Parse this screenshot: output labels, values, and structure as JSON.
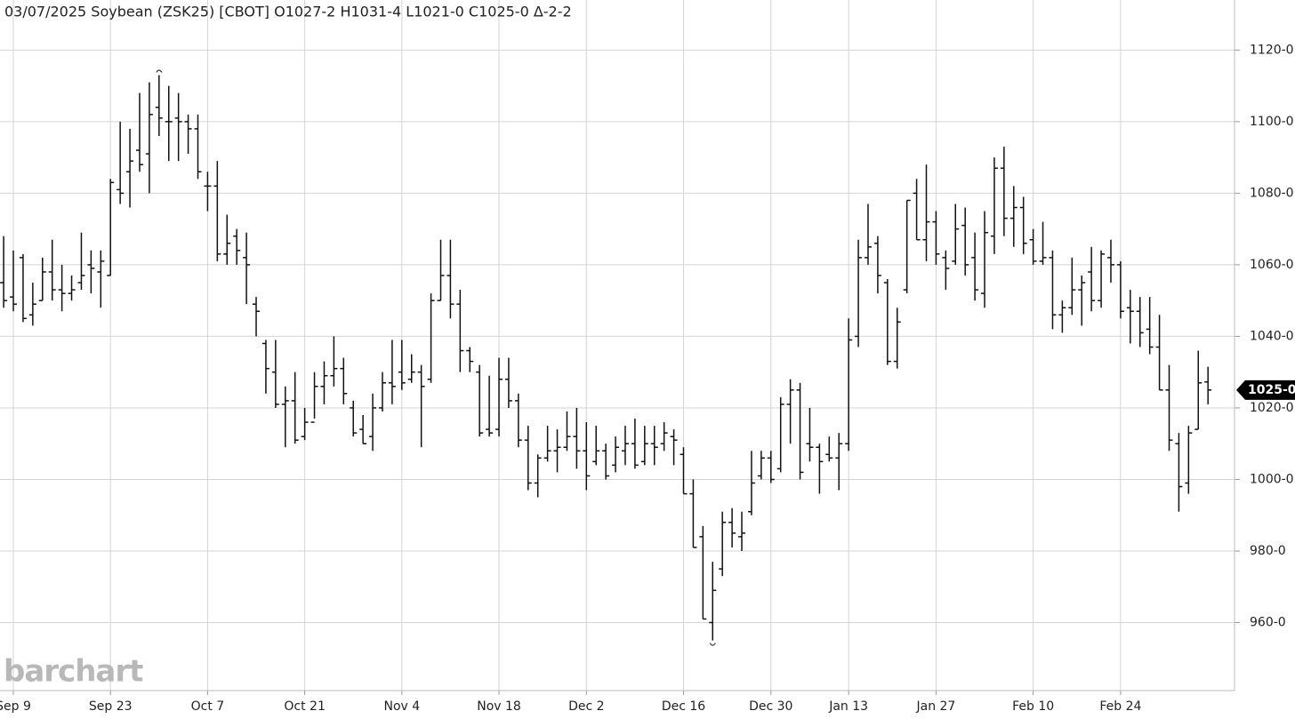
{
  "chart_data": {
    "type": "ohlc",
    "title": "03/07/2025 Soybean (ZSK25) [CBOT] O1027-2 H1031-4 L1021-0 C1025-0 Δ-2-2",
    "watermark": "barchart",
    "color": "#111111",
    "grid": true,
    "categories": [
      null,
      "Sep 9",
      null,
      null,
      null,
      null,
      null,
      null,
      null,
      null,
      null,
      "Sep 23",
      null,
      null,
      null,
      null,
      null,
      null,
      null,
      null,
      null,
      "Oct 7",
      null,
      null,
      null,
      null,
      null,
      null,
      null,
      null,
      null,
      "Oct 21",
      null,
      null,
      null,
      null,
      null,
      null,
      null,
      null,
      null,
      "Nov 4",
      null,
      null,
      null,
      null,
      null,
      null,
      null,
      null,
      null,
      "Nov 18",
      null,
      null,
      null,
      null,
      null,
      null,
      null,
      null,
      "Dec 2",
      null,
      null,
      null,
      null,
      null,
      null,
      null,
      null,
      null,
      "Dec 16",
      null,
      null,
      null,
      null,
      null,
      null,
      null,
      null,
      "Dec 30",
      null,
      null,
      null,
      null,
      null,
      null,
      null,
      "Jan 13",
      null,
      null,
      null,
      null,
      null,
      null,
      null,
      null,
      "Jan 27",
      null,
      null,
      null,
      null,
      null,
      null,
      null,
      null,
      null,
      "Feb 10",
      null,
      null,
      null,
      null,
      null,
      null,
      null,
      null,
      "Feb 24",
      null,
      null,
      null,
      null,
      null,
      null,
      null,
      null,
      null
    ],
    "open": [
      1055,
      1051,
      1062,
      1046,
      1050,
      1058,
      1053,
      1052,
      1055,
      1060,
      1058,
      1057,
      1081,
      1086,
      1092,
      1091,
      1104,
      1100,
      1101,
      1100,
      1098,
      1082,
      1082,
      1063,
      1068,
      1062,
      1049,
      1038,
      1030,
      1021,
      1022,
      1012,
      1016,
      1026,
      1029,
      1031,
      1020,
      1014,
      1012,
      1020,
      1027,
      1030,
      1028,
      1030,
      1028,
      1050,
      1057,
      1049,
      1036,
      1030,
      1014,
      1014,
      1028,
      1022,
      1011,
      999,
      1006,
      1008,
      1009,
      1012,
      1008,
      1005,
      1008,
      1004,
      1008,
      1010,
      1005,
      1010,
      1010,
      1012,
      1007,
      996,
      984,
      960,
      975,
      988,
      984,
      991,
      1001,
      1006,
      1003,
      1021,
      1025,
      1010,
      1009,
      1007,
      1006,
      1010,
      1040,
      1062,
      1066,
      1055,
      1033,
      1053,
      1080,
      1067,
      1072,
      1062,
      1061,
      1071,
      1062,
      1052,
      1068,
      1087,
      1073,
      1076,
      1067,
      1061,
      1062,
      1046,
      1048,
      1053,
      1058,
      1050,
      1062,
      1060,
      1048,
      1047,
      1042,
      1037,
      1025,
      1010,
      999,
      1014,
      1027.25
    ],
    "high": [
      1068,
      1064,
      1063,
      1055,
      1062,
      1067,
      1060,
      1057,
      1069,
      1064,
      1064,
      1084,
      1100,
      1098,
      1108,
      1111,
      1113,
      1110,
      1108,
      1102,
      1102,
      1086,
      1089,
      1074,
      1070,
      1069,
      1051,
      1039,
      1039,
      1026,
      1030,
      1020,
      1030,
      1033,
      1040,
      1034,
      1022,
      1018,
      1024,
      1030,
      1039,
      1039,
      1035,
      1032,
      1052,
      1067,
      1067,
      1053,
      1037,
      1032,
      1029,
      1034,
      1034,
      1024,
      1015,
      1007,
      1015,
      1014,
      1019,
      1020,
      1016,
      1015,
      1010,
      1012,
      1015,
      1017,
      1015,
      1015,
      1016,
      1014,
      1009,
      1000,
      987,
      977,
      991,
      992,
      991,
      1008,
      1008,
      1008,
      1023,
      1028,
      1027,
      1020,
      1010,
      1012,
      1013,
      1045,
      1067,
      1077,
      1068,
      1056,
      1048,
      1078,
      1084,
      1088,
      1075,
      1064,
      1077,
      1076,
      1069,
      1075,
      1090,
      1093,
      1082,
      1079,
      1070,
      1072,
      1064,
      1050,
      1062,
      1057,
      1065,
      1064,
      1067,
      1061,
      1053,
      1051,
      1051,
      1046,
      1032,
      1013,
      1015,
      1036,
      1031.5
    ],
    "low": [
      1048,
      1047,
      1044,
      1043,
      1050,
      1050,
      1047,
      1050,
      1053,
      1052,
      1048,
      1057,
      1077,
      1076,
      1086,
      1080,
      1096,
      1089,
      1089,
      1091,
      1084,
      1075,
      1061,
      1060,
      1060,
      1049,
      1040,
      1024,
      1020,
      1009,
      1010,
      1011,
      1017,
      1021,
      1026,
      1021,
      1012,
      1010,
      1008,
      1019,
      1021,
      1025,
      1027,
      1009,
      1027,
      1050,
      1045,
      1030,
      1030,
      1012,
      1012,
      1012,
      1020,
      1009,
      997,
      995,
      1005,
      1002,
      1008,
      1003,
      997,
      1004,
      1000,
      1002,
      1004,
      1003,
      1004,
      1004,
      1008,
      1004,
      996,
      981,
      961,
      955,
      973,
      981,
      980,
      990,
      1000,
      999,
      1002,
      1010,
      1000,
      1005,
      996,
      1005,
      997,
      1008,
      1037,
      1060,
      1052,
      1032,
      1031,
      1052,
      1067,
      1061,
      1060,
      1053,
      1060,
      1057,
      1050,
      1048,
      1063,
      1068,
      1065,
      1063,
      1060,
      1060,
      1042,
      1041,
      1046,
      1043,
      1047,
      1048,
      1055,
      1045,
      1038,
      1037,
      1035,
      1025,
      1008,
      991,
      996,
      1014,
      1021
    ],
    "close": [
      1050,
      1049,
      1045,
      1049,
      1058,
      1053,
      1052,
      1053,
      1057,
      1059,
      1061,
      1083,
      1080,
      1089,
      1088,
      1102,
      1101,
      1100,
      1100,
      1098,
      1086,
      1082,
      1063,
      1066,
      1064,
      1060,
      1047,
      1031,
      1021,
      1022,
      1011,
      1016,
      1026,
      1029,
      1031,
      1024,
      1013,
      1010,
      1020,
      1027,
      1026,
      1027,
      1030,
      1026,
      1050,
      1057,
      1049,
      1036,
      1033,
      1013,
      1013,
      1028,
      1022,
      1011,
      999,
      1006,
      1008,
      1009,
      1012,
      1008,
      1001,
      1008,
      1001,
      1009,
      1010,
      1004,
      1010,
      1009,
      1013,
      1011,
      996,
      981,
      961,
      969,
      988,
      985,
      985,
      999,
      1006,
      1000,
      1021,
      1025,
      1002,
      1009,
      1005,
      1006,
      1010,
      1039,
      1062,
      1065,
      1057,
      1033,
      1044,
      1078,
      1067,
      1072,
      1063,
      1059,
      1070,
      1060,
      1053,
      1069,
      1087,
      1073,
      1076,
      1066,
      1061,
      1062,
      1046,
      1048,
      1053,
      1055,
      1050,
      1063,
      1060,
      1047,
      1047,
      1041,
      1037,
      1025,
      1011,
      998,
      1013,
      1027,
      1025
    ],
    "last_price": {
      "value": 1025,
      "label": "1025-0"
    },
    "ylim": [
      941,
      1134
    ],
    "yticks": [
      {
        "value": 960,
        "label": "960-0"
      },
      {
        "value": 980,
        "label": "980-0"
      },
      {
        "value": 1000,
        "label": "1000-0"
      },
      {
        "value": 1020,
        "label": "1020-0"
      },
      {
        "value": 1040,
        "label": "1040-0"
      },
      {
        "value": 1060,
        "label": "1060-0"
      },
      {
        "value": 1080,
        "label": "1080-0"
      },
      {
        "value": 1100,
        "label": "1100-0"
      },
      {
        "value": 1120,
        "label": "1120-0"
      }
    ]
  }
}
